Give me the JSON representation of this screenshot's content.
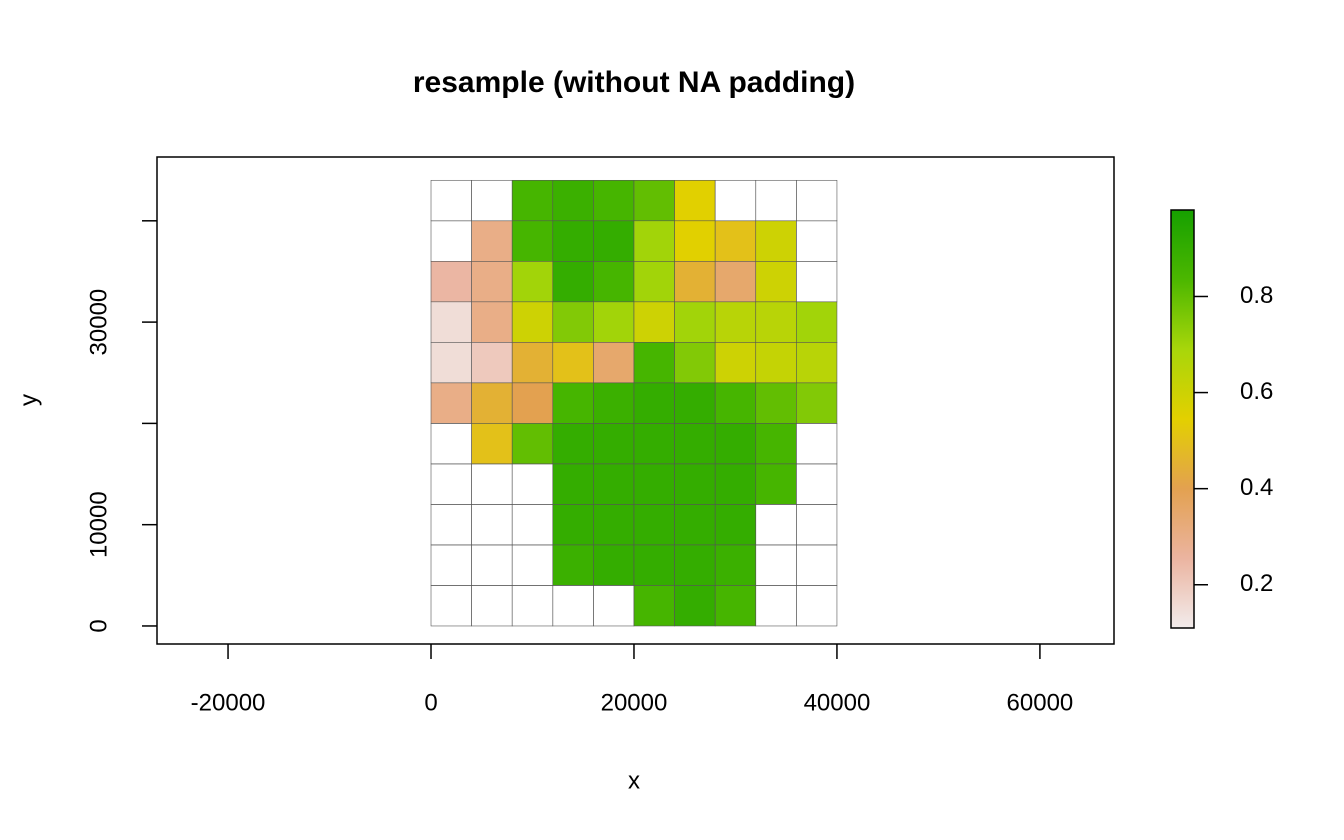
{
  "chart_data": {
    "type": "raster",
    "title": "resample (without NA padding)",
    "x_label": "x",
    "y_label": "y",
    "xlim": [
      -27000,
      67300
    ],
    "ylim": [
      -1780,
      46300
    ],
    "xticks": [
      -20000,
      0,
      20000,
      40000,
      60000
    ],
    "yticks": [
      0,
      10000,
      {
        "value": 20000,
        "label": null
      },
      30000,
      {
        "value": 40000,
        "label": null
      }
    ],
    "extent": [
      0,
      40000,
      0,
      44000
    ],
    "values": [
      [
        null,
        null,
        0.85,
        0.88,
        0.85,
        0.8,
        0.55,
        null,
        null,
        null
      ],
      [
        null,
        0.3,
        0.85,
        0.9,
        0.9,
        0.7,
        0.55,
        0.5,
        0.6,
        null
      ],
      [
        0.25,
        0.3,
        0.7,
        0.9,
        0.85,
        0.7,
        0.45,
        0.35,
        0.6,
        null
      ],
      [
        0.15,
        0.3,
        0.6,
        0.75,
        0.7,
        0.6,
        0.7,
        0.65,
        0.65,
        0.7
      ],
      [
        0.15,
        0.2,
        0.45,
        0.5,
        0.35,
        0.85,
        0.75,
        0.6,
        0.62,
        0.65
      ],
      [
        0.3,
        0.45,
        0.4,
        0.85,
        0.88,
        0.9,
        0.9,
        0.85,
        0.8,
        0.75
      ],
      [
        null,
        0.5,
        0.8,
        0.9,
        0.9,
        0.9,
        0.9,
        0.9,
        0.85,
        null
      ],
      [
        null,
        null,
        null,
        0.9,
        0.9,
        0.9,
        0.9,
        0.9,
        0.85,
        null
      ],
      [
        null,
        null,
        null,
        0.9,
        0.9,
        0.9,
        0.9,
        0.9,
        null,
        null
      ],
      [
        null,
        null,
        null,
        0.88,
        0.9,
        0.9,
        0.9,
        0.88,
        null,
        null
      ],
      [
        null,
        null,
        null,
        null,
        null,
        0.85,
        0.9,
        0.85,
        null,
        null
      ]
    ],
    "zlim": [
      0.11,
      0.98
    ],
    "zticks": [
      0.2,
      0.4,
      0.6,
      0.8
    ],
    "colors": [
      "#f2ecec",
      "#ebb4a0",
      "#e3a150",
      "#e3d000",
      "#a8d60a",
      "#4cb700",
      "#16a000"
    ]
  }
}
